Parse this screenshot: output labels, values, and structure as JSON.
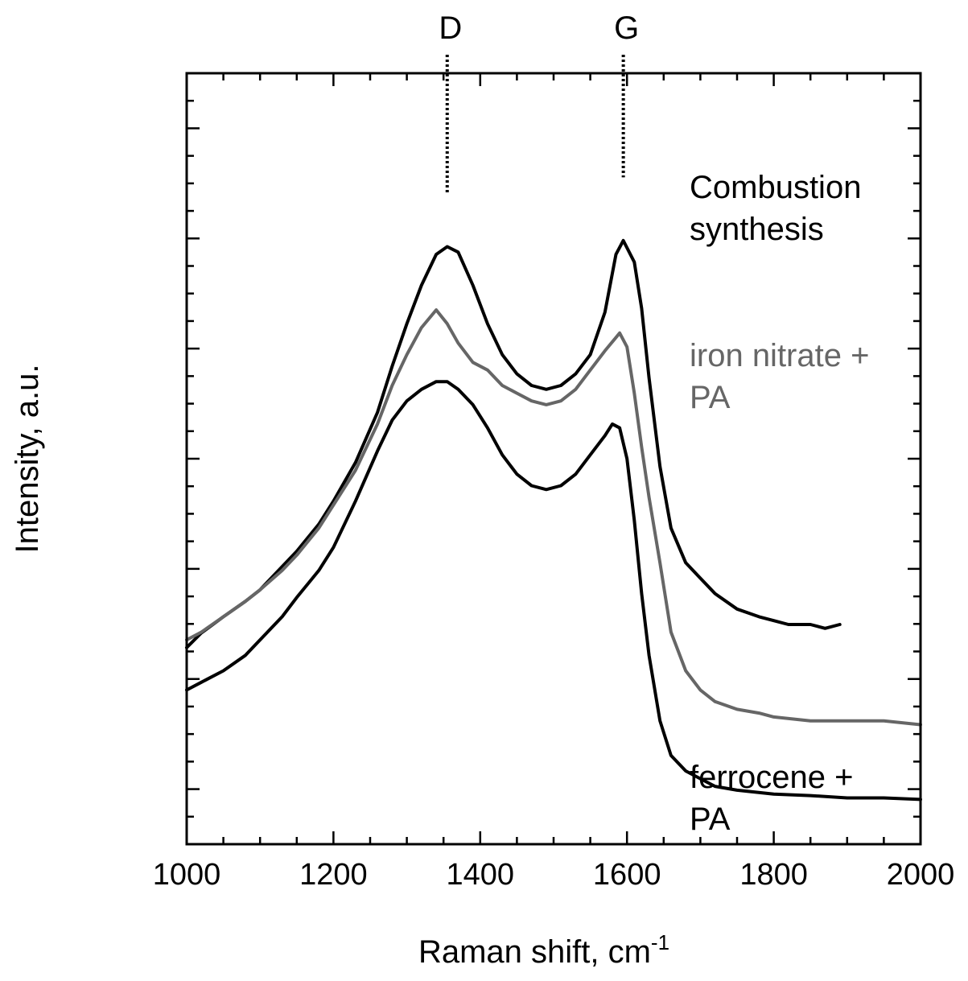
{
  "chart_data": {
    "type": "line",
    "xlabel": "Raman shift, cm",
    "xlabel_superscript": "-1",
    "ylabel": "Intensity, a.u.",
    "xlim": [
      1000,
      2000
    ],
    "ylim": [
      0,
      100
    ],
    "x_ticks": [
      "1000",
      "1200",
      "1400",
      "1600",
      "1800",
      "2000"
    ],
    "y_ticks_labeled": false,
    "grid": false,
    "peak_markers": [
      {
        "label": "D",
        "x": 1355,
        "y": 84.5
      },
      {
        "label": "G",
        "x": 1595,
        "y": 86.5
      }
    ],
    "series": [
      {
        "name": "Combustion synthesis",
        "label_lines": [
          "Combustion",
          "synthesis"
        ],
        "color": "#000000",
        "x": [
          1000,
          1020,
          1050,
          1080,
          1100,
          1130,
          1150,
          1180,
          1200,
          1230,
          1260,
          1280,
          1300,
          1320,
          1340,
          1355,
          1370,
          1390,
          1410,
          1430,
          1450,
          1470,
          1490,
          1510,
          1530,
          1550,
          1570,
          1585,
          1595,
          1610,
          1620,
          1630,
          1645,
          1660,
          1680,
          1700,
          1720,
          1750,
          1780,
          1800,
          1820,
          1850,
          1870,
          1890
        ],
        "y": [
          25.5,
          27.4,
          29.5,
          31.5,
          33.0,
          36.0,
          38.0,
          41.5,
          44.5,
          49.5,
          56.0,
          62.0,
          67.5,
          72.5,
          76.5,
          77.5,
          76.8,
          72.5,
          67.5,
          63.5,
          61.0,
          59.5,
          59.0,
          59.5,
          61.0,
          63.5,
          69.0,
          76.5,
          78.3,
          75.5,
          69.5,
          60.5,
          49.0,
          41.0,
          36.5,
          34.5,
          32.5,
          30.5,
          29.5,
          29.0,
          28.5,
          28.5,
          28.0,
          28.5
        ]
      },
      {
        "name": "iron nitrate + PA",
        "label_lines": [
          "iron nitrate +",
          "PA"
        ],
        "color": "#666666",
        "x": [
          1000,
          1020,
          1050,
          1080,
          1100,
          1130,
          1150,
          1180,
          1200,
          1230,
          1260,
          1280,
          1300,
          1320,
          1340,
          1355,
          1370,
          1390,
          1410,
          1430,
          1450,
          1470,
          1490,
          1510,
          1530,
          1550,
          1570,
          1590,
          1600,
          1610,
          1620,
          1630,
          1645,
          1660,
          1680,
          1700,
          1720,
          1750,
          1780,
          1800,
          1850,
          1900,
          1950,
          2000
        ],
        "y": [
          26.5,
          27.5,
          29.5,
          31.5,
          33.0,
          35.5,
          37.5,
          41.0,
          44.0,
          48.5,
          54.5,
          59.5,
          63.5,
          67.0,
          69.3,
          67.5,
          65.0,
          62.5,
          61.5,
          59.5,
          58.5,
          57.5,
          57.0,
          57.5,
          59.0,
          61.5,
          64.0,
          66.3,
          64.5,
          58.5,
          51.5,
          45.0,
          36.5,
          27.5,
          22.5,
          20.0,
          18.5,
          17.5,
          17.0,
          16.5,
          16.0,
          16.0,
          16.0,
          15.5
        ]
      },
      {
        "name": "ferrocene + PA",
        "label_lines": [
          "ferrocene +",
          "PA"
        ],
        "color": "#000000",
        "x": [
          1000,
          1020,
          1050,
          1080,
          1100,
          1130,
          1150,
          1180,
          1200,
          1230,
          1260,
          1280,
          1300,
          1320,
          1340,
          1355,
          1370,
          1390,
          1410,
          1430,
          1450,
          1470,
          1490,
          1510,
          1530,
          1550,
          1570,
          1580,
          1590,
          1600,
          1610,
          1620,
          1630,
          1645,
          1660,
          1680,
          1700,
          1720,
          1750,
          1800,
          1850,
          1900,
          1950,
          2000
        ],
        "y": [
          20.0,
          21.0,
          22.5,
          24.5,
          26.5,
          29.5,
          32.0,
          35.5,
          38.5,
          44.5,
          51.0,
          55.0,
          57.5,
          59.0,
          60.0,
          60.0,
          59.0,
          57.0,
          54.0,
          50.5,
          48.0,
          46.5,
          46.0,
          46.5,
          48.0,
          50.5,
          53.0,
          54.5,
          54.0,
          50.0,
          42.0,
          32.5,
          24.5,
          16.0,
          11.5,
          9.5,
          8.5,
          7.5,
          7.0,
          6.5,
          6.3,
          6.0,
          6.0,
          5.8
        ]
      }
    ]
  }
}
